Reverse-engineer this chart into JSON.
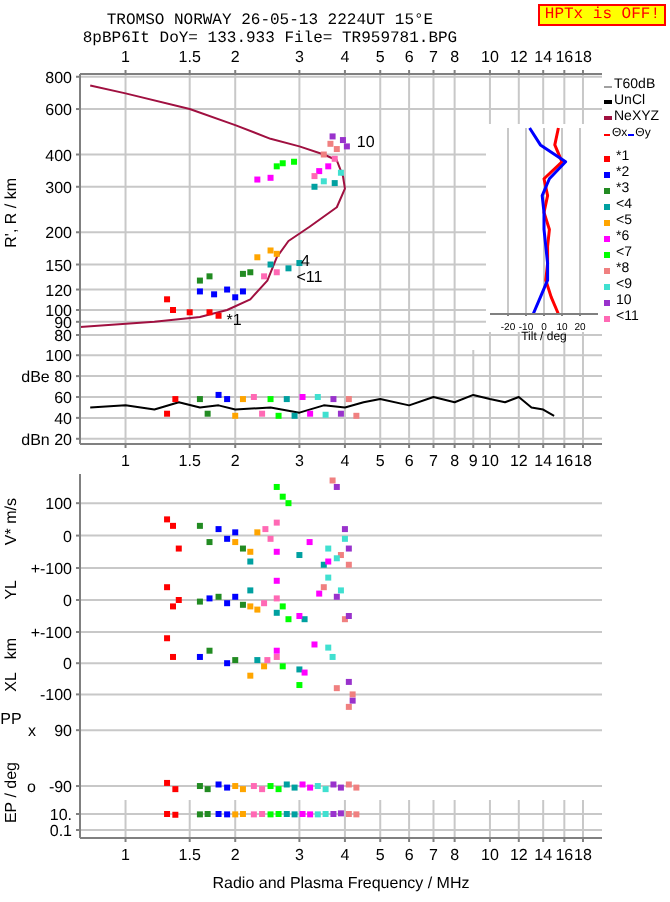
{
  "chart_data": [
    {
      "type": "scatter",
      "title": "TROMSO NORWAY   26-05-13 2224UT 15°E",
      "subtitle": "8pBP6It DoY= 133.933 File= TR959781.BPG",
      "ylabel": "R', R / km",
      "annotations": [
        "HPTx is OFF!",
        "T60dB",
        {
          "text": "*1",
          "x": 1.8,
          "y": 92
        },
        {
          "text": "<11",
          "x": 2.8,
          "y": 135
        },
        {
          "text": "4",
          "x": 2.88,
          "y": 156
        },
        {
          "text": "10",
          "x": 4.1,
          "y": 450
        }
      ],
      "log": "xy",
      "grid": true,
      "legend": "right",
      "marker": "square",
      "xlim": [
        0.75,
        20.3
      ],
      "xticks": [
        1,
        1.5,
        2,
        3,
        4,
        5,
        6,
        7,
        8,
        10,
        12,
        14,
        16,
        18
      ],
      "ylim": [
        70,
        820
      ],
      "yticks": [
        80,
        90,
        100,
        120,
        150,
        200,
        300,
        400,
        600,
        800
      ],
      "series": [
        {
          "name": "NeXYZ",
          "type": "line",
          "marker": "none",
          "color": "#a01040",
          "x": [
            0.8,
            1.0,
            1.5,
            2.0,
            2.5,
            3.0,
            3.5,
            3.8,
            3.95,
            4.0,
            3.8,
            3.2,
            2.8,
            2.6,
            2.45,
            2.2,
            1.9,
            1.6,
            1.2,
            0.75
          ],
          "values": [
            740,
            690,
            600,
            520,
            460,
            430,
            400,
            380,
            330,
            295,
            250,
            210,
            185,
            160,
            130,
            110,
            100,
            94,
            90,
            86
          ]
        },
        {
          "name": "*1",
          "color": "#ff0000",
          "x": [
            1.3,
            1.35,
            1.7,
            1.8,
            1.5
          ],
          "values": [
            110,
            100,
            98,
            95,
            98
          ]
        },
        {
          "name": "*2",
          "color": "#0000ff",
          "x": [
            1.6,
            1.75,
            1.9,
            2.0,
            2.1
          ],
          "values": [
            118,
            115,
            120,
            112,
            118
          ]
        },
        {
          "name": "*3",
          "color": "#228b22",
          "x": [
            1.6,
            1.7,
            2.1,
            2.2
          ],
          "values": [
            130,
            135,
            138,
            140
          ]
        },
        {
          "name": "<4",
          "color": "#00a0a0",
          "x": [
            2.5,
            3.0,
            2.8,
            3.3,
            3.75
          ],
          "values": [
            150,
            152,
            145,
            300,
            310
          ]
        },
        {
          "name": "<5",
          "color": "#ffa500",
          "x": [
            2.3,
            2.5,
            2.6
          ],
          "values": [
            160,
            170,
            165
          ]
        },
        {
          "name": "*6",
          "color": "#ff00ff",
          "x": [
            2.3,
            2.5,
            3.4,
            3.6
          ],
          "values": [
            320,
            325,
            345,
            360
          ]
        },
        {
          "name": "<7",
          "color": "#00ff00",
          "x": [
            2.6,
            2.7,
            2.9
          ],
          "values": [
            360,
            370,
            375
          ]
        },
        {
          "name": "*8",
          "color": "#f08080",
          "x": [
            3.5,
            3.8,
            3.65
          ],
          "values": [
            400,
            420,
            440
          ]
        },
        {
          "name": "<9",
          "color": "#40e0d0",
          "x": [
            3.5,
            3.9
          ],
          "values": [
            315,
            340
          ]
        },
        {
          "name": "10",
          "color": "#9932cc",
          "x": [
            3.7,
            3.95,
            4.05
          ],
          "values": [
            470,
            455,
            430
          ]
        },
        {
          "name": "<11",
          "color": "#ff69b4",
          "x": [
            2.4,
            2.6,
            3.75,
            3.3
          ],
          "values": [
            135,
            140,
            385,
            330
          ]
        }
      ]
    },
    {
      "type": "line",
      "orientation": "horizontal",
      "xlabel": "Tilt / deg",
      "categories": [
        null,
        null,
        null,
        null,
        null,
        null,
        null,
        null,
        null,
        null,
        null,
        null
      ],
      "xlim": [
        -30,
        30
      ],
      "xticks": [
        -20,
        -10,
        0,
        10,
        20
      ],
      "tick_labels": "x",
      "grid": true,
      "series": [
        {
          "name": "Θx",
          "color": "#ff0000",
          "values": [
            8,
            6,
            10,
            0,
            2,
            0,
            3,
            2,
            2,
            1,
            4,
            8
          ]
        },
        {
          "name": "Θy",
          "color": "#0000ff",
          "values": [
            -8,
            -2,
            12,
            3,
            -1,
            0,
            0,
            1,
            2,
            2,
            -2,
            -6
          ]
        }
      ]
    },
    {
      "type": "scatter",
      "log": "x",
      "grid": true,
      "marker": "square",
      "xlim": [
        0.75,
        20.3
      ],
      "xticks": [
        1,
        1.5,
        2,
        3,
        4,
        5,
        6,
        7,
        8,
        9,
        10,
        12,
        14,
        16,
        18
      ],
      "ylim": [
        15,
        105
      ],
      "yticks": [
        100,
        {
          "value": 80,
          "label": "dBe 80"
        },
        60,
        40,
        {
          "value": 20,
          "label": "dBn 20"
        }
      ],
      "series": [
        {
          "name": "UnCl",
          "type": "line",
          "marker": "none",
          "color": "#000000",
          "x": [
            0.8,
            1.0,
            1.2,
            1.4,
            1.6,
            1.8,
            2.0,
            2.5,
            3.0,
            3.5,
            4.0,
            4.5,
            5,
            6,
            7,
            8,
            9,
            10,
            11,
            12,
            13,
            14,
            15
          ],
          "values": [
            50,
            52,
            48,
            55,
            50,
            52,
            48,
            50,
            45,
            52,
            50,
            55,
            58,
            52,
            60,
            55,
            62,
            58,
            55,
            60,
            50,
            48,
            42
          ]
        },
        {
          "color": "#ff0000",
          "x": [
            1.3,
            1.37
          ],
          "values": [
            44,
            58
          ]
        },
        {
          "color": "#0000ff",
          "x": [
            1.8,
            1.9
          ],
          "values": [
            62,
            58
          ]
        },
        {
          "color": "#228b22",
          "x": [
            1.6,
            1.68
          ],
          "values": [
            58,
            44
          ]
        },
        {
          "color": "#00a0a0",
          "x": [
            2.77,
            2.91
          ],
          "values": [
            58,
            42
          ]
        },
        {
          "color": "#ffa500",
          "x": [
            2.0,
            2.1
          ],
          "values": [
            42,
            58
          ]
        },
        {
          "color": "#ff00ff",
          "x": [
            3.06,
            3.21
          ],
          "values": [
            60,
            44
          ]
        },
        {
          "color": "#00ff00",
          "x": [
            2.5,
            2.63
          ],
          "values": [
            58,
            42
          ]
        },
        {
          "color": "#f08080",
          "x": [
            4.1,
            4.3
          ],
          "values": [
            58,
            42
          ]
        },
        {
          "color": "#40e0d0",
          "x": [
            3.37,
            3.54
          ],
          "values": [
            60,
            43
          ]
        },
        {
          "color": "#9932cc",
          "x": [
            3.72,
            3.9
          ],
          "values": [
            58,
            44
          ]
        },
        {
          "color": "#ff69b4",
          "x": [
            2.25,
            2.37
          ],
          "values": [
            60,
            44
          ]
        }
      ]
    },
    {
      "type": "scatter",
      "log": "x",
      "grid": true,
      "marker": "square",
      "tick_labels": "y",
      "ylabel": "V* m/s",
      "xlim": [
        0.75,
        20.3
      ],
      "xticks": [
        1,
        1.5,
        2,
        3,
        4,
        5,
        6,
        7,
        8,
        10,
        12,
        14,
        16,
        18
      ],
      "ylim": [
        -100,
        190
      ],
      "yticks": [
        100,
        0,
        {
          "value": -100,
          "label": "+-100"
        }
      ],
      "series": [
        {
          "color": "#ff0000",
          "x": [
            1.3,
            1.35,
            1.4
          ],
          "values": [
            50,
            30,
            -40
          ]
        },
        {
          "color": "#0000ff",
          "x": [
            1.8,
            1.9,
            2.0
          ],
          "values": [
            20,
            -10,
            10
          ]
        },
        {
          "color": "#228b22",
          "x": [
            1.6,
            1.7,
            2.1
          ],
          "values": [
            30,
            -20,
            -40
          ]
        },
        {
          "color": "#00a0a0",
          "x": [
            2.2,
            3.0,
            3.5
          ],
          "values": [
            -80,
            -60,
            -90
          ]
        },
        {
          "color": "#ffa500",
          "x": [
            2.0,
            2.2,
            2.3
          ],
          "values": [
            -20,
            -50,
            10
          ]
        },
        {
          "color": "#ff00ff",
          "x": [
            2.6,
            3.2,
            3.6
          ],
          "values": [
            -50,
            -20,
            -80
          ]
        },
        {
          "color": "#00ff00",
          "x": [
            2.6,
            2.7,
            2.8
          ],
          "values": [
            150,
            120,
            100
          ]
        },
        {
          "color": "#f08080",
          "x": [
            3.7,
            3.9,
            4.1
          ],
          "values": [
            170,
            -60,
            -90
          ]
        },
        {
          "color": "#40e0d0",
          "x": [
            3.6,
            3.8,
            4.0
          ],
          "values": [
            -40,
            -70,
            -10
          ]
        },
        {
          "color": "#9932cc",
          "x": [
            3.8,
            4.0,
            4.1
          ],
          "values": [
            150,
            20,
            -40
          ]
        },
        {
          "color": "#ff69b4",
          "x": [
            2.42,
            2.5,
            2.6
          ],
          "values": [
            20,
            -10,
            40
          ]
        }
      ]
    },
    {
      "type": "scatter",
      "log": "x",
      "grid": true,
      "marker": "square",
      "tick_labels": "y",
      "ylabel": "YL",
      "xlim": [
        0.75,
        20.3
      ],
      "xticks": [
        1,
        1.5,
        2,
        3,
        4,
        5,
        6,
        7,
        8,
        10,
        12,
        14,
        16,
        18
      ],
      "ylim": [
        -100,
        100
      ],
      "yticks": [
        0,
        {
          "value": -100,
          "label": "+-100"
        }
      ],
      "series": [
        {
          "color": "#ff0000",
          "x": [
            1.3,
            1.4,
            1.35
          ],
          "values": [
            40,
            0,
            -20
          ]
        },
        {
          "color": "#0000ff",
          "x": [
            1.7,
            1.9,
            2.0
          ],
          "values": [
            5,
            -10,
            10
          ]
        },
        {
          "color": "#228b22",
          "x": [
            1.6,
            1.8,
            2.1
          ],
          "values": [
            -5,
            10,
            -15
          ]
        },
        {
          "color": "#00a0a0",
          "x": [
            2.2,
            2.6,
            3.1
          ],
          "values": [
            30,
            -40,
            -60
          ]
        },
        {
          "color": "#ffa500",
          "x": [
            2.2,
            2.3
          ],
          "values": [
            -20,
            -30
          ]
        },
        {
          "color": "#ff00ff",
          "x": [
            2.6,
            3.0,
            3.4
          ],
          "values": [
            60,
            -50,
            20
          ]
        },
        {
          "color": "#00ff00",
          "x": [
            2.7,
            2.8
          ],
          "values": [
            -20,
            -60
          ]
        },
        {
          "color": "#f08080",
          "x": [
            3.5,
            4.0
          ],
          "values": [
            40,
            -60
          ]
        },
        {
          "color": "#40e0d0",
          "x": [
            3.6,
            3.9
          ],
          "values": [
            70,
            30
          ]
        },
        {
          "color": "#9932cc",
          "x": [
            3.8,
            4.1
          ],
          "values": [
            10,
            -50
          ]
        },
        {
          "color": "#ff69b4",
          "x": [
            2.4,
            2.6
          ],
          "values": [
            -10,
            5
          ]
        }
      ]
    },
    {
      "type": "scatter",
      "log": "x",
      "grid": true,
      "marker": "square",
      "tick_labels": "y",
      "ylabel": "XL   km",
      "xlim": [
        0.75,
        20.3
      ],
      "xticks": [
        1,
        1.5,
        2,
        3,
        4,
        5,
        6,
        7,
        8,
        10,
        12,
        14,
        16,
        18
      ],
      "ylim": [
        -150,
        100
      ],
      "yticks": [
        0,
        -100
      ],
      "series": [
        {
          "color": "#ff0000",
          "x": [
            1.3,
            1.35
          ],
          "values": [
            80,
            20
          ]
        },
        {
          "color": "#0000ff",
          "x": [
            1.6,
            1.9
          ],
          "values": [
            20,
            0
          ]
        },
        {
          "color": "#228b22",
          "x": [
            1.7,
            2.0
          ],
          "values": [
            40,
            10
          ]
        },
        {
          "color": "#00a0a0",
          "x": [
            2.3,
            3.0
          ],
          "values": [
            10,
            -20
          ]
        },
        {
          "color": "#ffa500",
          "x": [
            2.2,
            2.4
          ],
          "values": [
            -40,
            -10
          ]
        },
        {
          "color": "#ff00ff",
          "x": [
            2.6,
            3.1,
            3.3
          ],
          "values": [
            40,
            -30,
            60
          ]
        },
        {
          "color": "#00ff00",
          "x": [
            2.7,
            3.0
          ],
          "values": [
            -10,
            -70
          ]
        },
        {
          "color": "#f08080",
          "x": [
            3.8,
            4.1,
            4.2
          ],
          "values": [
            -80,
            -140,
            -100
          ]
        },
        {
          "color": "#40e0d0",
          "x": [
            3.6,
            3.7
          ],
          "values": [
            50,
            20
          ]
        },
        {
          "color": "#9932cc",
          "x": [
            4.1,
            4.2
          ],
          "values": [
            -60,
            -120
          ]
        },
        {
          "color": "#ff69b4",
          "x": [
            2.45,
            2.6
          ],
          "values": [
            10,
            20
          ]
        }
      ]
    },
    {
      "type": "scatter",
      "log": "x",
      "grid": true,
      "marker": "square",
      "tick_labels": "y",
      "ylabel": "PP",
      "annotations": [
        "x",
        "o"
      ],
      "xlim": [
        0.75,
        20.3
      ],
      "xticks": [
        1,
        1.5,
        2,
        3,
        4,
        5,
        6,
        7,
        8,
        10,
        12,
        14,
        16,
        18
      ],
      "ylim": [
        -135,
        155
      ],
      "yticks": [
        90,
        -90
      ],
      "series": [
        {
          "color": "#ff0000",
          "x": [
            1.3,
            1.37
          ],
          "values": [
            -80,
            -100
          ]
        },
        {
          "color": "#0000ff",
          "x": [
            1.8,
            1.9
          ],
          "values": [
            -85,
            -95
          ]
        },
        {
          "color": "#228b22",
          "x": [
            1.6,
            1.68
          ],
          "values": [
            -90,
            -100
          ]
        },
        {
          "color": "#00a0a0",
          "x": [
            2.77,
            2.91
          ],
          "values": [
            -85,
            -95
          ]
        },
        {
          "color": "#ffa500",
          "x": [
            2.0,
            2.1
          ],
          "values": [
            -90,
            -100
          ]
        },
        {
          "color": "#ff00ff",
          "x": [
            3.06,
            3.21
          ],
          "values": [
            -85,
            -95
          ]
        },
        {
          "color": "#00ff00",
          "x": [
            2.5,
            2.63
          ],
          "values": [
            -90,
            -100
          ]
        },
        {
          "color": "#f08080",
          "x": [
            4.1,
            4.3
          ],
          "values": [
            -85,
            -95
          ]
        },
        {
          "color": "#40e0d0",
          "x": [
            3.37,
            3.54
          ],
          "values": [
            -90,
            -100
          ]
        },
        {
          "color": "#9932cc",
          "x": [
            3.72,
            3.9
          ],
          "values": [
            -85,
            -95
          ]
        },
        {
          "color": "#ff69b4",
          "x": [
            2.25,
            2.37
          ],
          "values": [
            -90,
            -100
          ]
        }
      ]
    },
    {
      "type": "scatter",
      "log": "xy",
      "grid": true,
      "marker": "square",
      "ylabel": "EP / deg",
      "xlabel": "Radio and Plasma Frequency / MHz",
      "xlim": [
        0.75,
        20.3
      ],
      "xticks": [
        1,
        1.5,
        2,
        3,
        4,
        5,
        6,
        7,
        8,
        10,
        12,
        14,
        16,
        18
      ],
      "ylim": [
        0.01,
        560
      ],
      "yticks": [
        {
          "value": 10,
          "label": "10."
        },
        0.1
      ],
      "series": [
        {
          "color": "#ff0000",
          "x": [
            1.3,
            1.37
          ],
          "values": [
            10,
            8
          ]
        },
        {
          "color": "#0000ff",
          "x": [
            1.8,
            1.9
          ],
          "values": [
            10,
            9
          ]
        },
        {
          "color": "#228b22",
          "x": [
            1.6,
            1.68
          ],
          "values": [
            9,
            10
          ]
        },
        {
          "color": "#00a0a0",
          "x": [
            2.77,
            2.91
          ],
          "values": [
            10,
            9
          ]
        },
        {
          "color": "#ffa500",
          "x": [
            2.0,
            2.1
          ],
          "values": [
            9,
            10
          ]
        },
        {
          "color": "#ff00ff",
          "x": [
            3.06,
            3.21
          ],
          "values": [
            10,
            9
          ]
        },
        {
          "color": "#00ff00",
          "x": [
            2.5,
            2.63
          ],
          "values": [
            9,
            10
          ]
        },
        {
          "color": "#f08080",
          "x": [
            4.1,
            4.3
          ],
          "values": [
            10,
            9
          ]
        },
        {
          "color": "#40e0d0",
          "x": [
            3.37,
            3.54
          ],
          "values": [
            9,
            10
          ]
        },
        {
          "color": "#9932cc",
          "x": [
            3.72,
            3.9
          ],
          "values": [
            10,
            12
          ]
        },
        {
          "color": "#ff69b4",
          "x": [
            2.25,
            2.37
          ],
          "values": [
            9,
            10
          ]
        }
      ]
    }
  ]
}
